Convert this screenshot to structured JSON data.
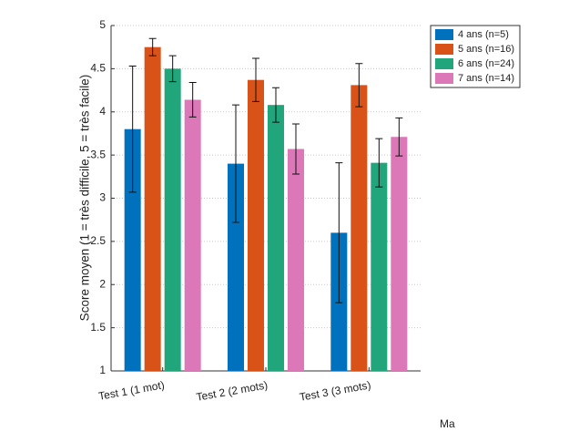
{
  "chart_data": {
    "type": "bar",
    "y_label": "Score moyen (1 = très difficile, 5 = très facile)",
    "categories": [
      "Test 1 (1 mot)",
      "Test 2 (2 mots)",
      "Test 3 (3 mots)"
    ],
    "series": [
      {
        "name": "4 ans (n=5)",
        "color": "#0072bd",
        "values": [
          3.8,
          3.4,
          2.6
        ],
        "errors": [
          0.73,
          0.68,
          0.81
        ]
      },
      {
        "name": "5 ans (n=16)",
        "color": "#d95319",
        "values": [
          4.75,
          4.37,
          4.31
        ],
        "errors": [
          0.1,
          0.25,
          0.25
        ]
      },
      {
        "name": "6 ans (n=24)",
        "color": "#20a67a",
        "values": [
          4.5,
          4.08,
          3.41
        ],
        "errors": [
          0.15,
          0.2,
          0.28
        ]
      },
      {
        "name": "7 ans (n=14)",
        "color": "#dc78b8",
        "values": [
          4.14,
          3.57,
          3.71
        ],
        "errors": [
          0.2,
          0.29,
          0.22
        ]
      }
    ],
    "ylim": [
      1,
      5
    ],
    "yticks": [
      1,
      1.5,
      2,
      2.5,
      3,
      3.5,
      4,
      4.5,
      5
    ],
    "grid": true,
    "legend": "outside-top-right",
    "annotation": "Ma"
  }
}
